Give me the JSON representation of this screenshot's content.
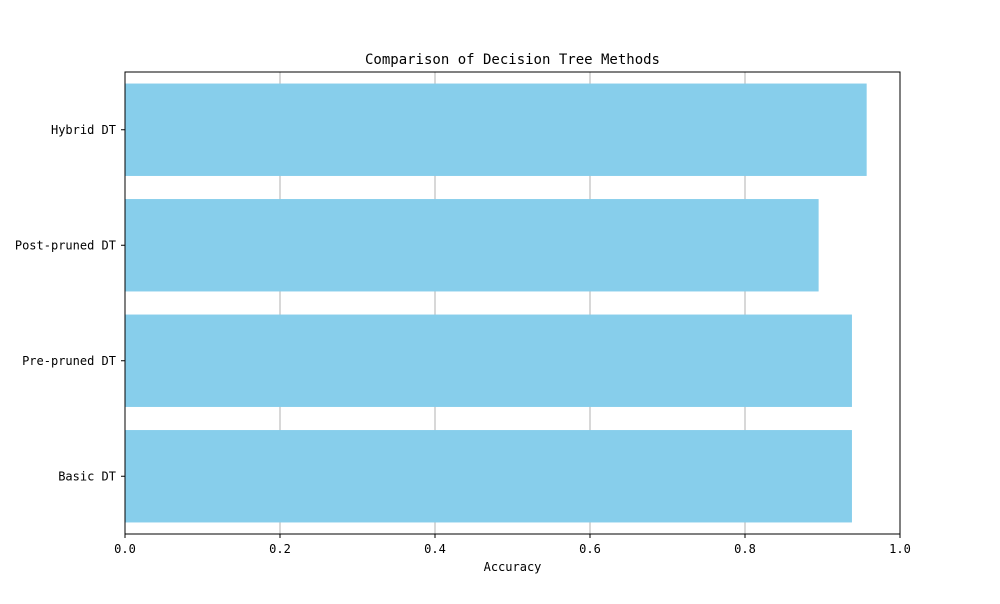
{
  "chart_data": {
    "type": "bar",
    "orientation": "horizontal",
    "title": "Comparison of Decision Tree Methods",
    "xlabel": "Accuracy",
    "ylabel": "",
    "xlim": [
      0.0,
      1.0
    ],
    "x_ticks": [
      0.0,
      0.2,
      0.4,
      0.6,
      0.8,
      1.0
    ],
    "x_tick_labels": [
      "0.0",
      "0.2",
      "0.4",
      "0.6",
      "0.8",
      "1.0"
    ],
    "categories": [
      "Basic DT",
      "Pre-pruned DT",
      "Post-pruned DT",
      "Hybrid DT"
    ],
    "values": [
      0.938,
      0.938,
      0.895,
      0.957
    ],
    "bar_color": "#87CEEB",
    "grid": "vertical",
    "grid_color": "#b0b0b0",
    "legend": "none"
  }
}
